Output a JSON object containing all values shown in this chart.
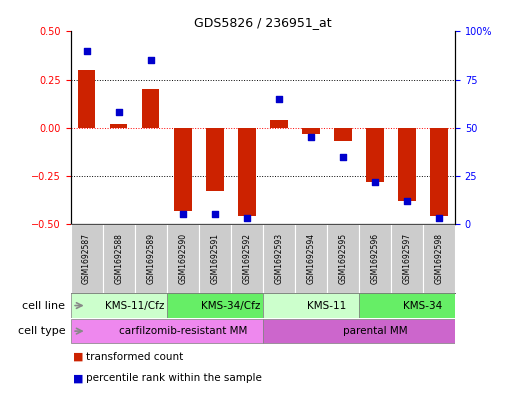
{
  "title": "GDS5826 / 236951_at",
  "samples": [
    "GSM1692587",
    "GSM1692588",
    "GSM1692589",
    "GSM1692590",
    "GSM1692591",
    "GSM1692592",
    "GSM1692593",
    "GSM1692594",
    "GSM1692595",
    "GSM1692596",
    "GSM1692597",
    "GSM1692598"
  ],
  "transformed_count": [
    0.3,
    0.02,
    0.2,
    -0.43,
    -0.33,
    -0.46,
    0.04,
    -0.03,
    -0.07,
    -0.28,
    -0.38,
    -0.46
  ],
  "percentile_rank": [
    90,
    58,
    85,
    5,
    5,
    3,
    65,
    45,
    35,
    22,
    12,
    3
  ],
  "cell_line_groups": [
    {
      "label": "KMS-11/Cfz",
      "start": 0,
      "end": 3,
      "color": "#ccffcc"
    },
    {
      "label": "KMS-34/Cfz",
      "start": 3,
      "end": 6,
      "color": "#66ee66"
    },
    {
      "label": "KMS-11",
      "start": 6,
      "end": 9,
      "color": "#ccffcc"
    },
    {
      "label": "KMS-34",
      "start": 9,
      "end": 12,
      "color": "#66ee66"
    }
  ],
  "cell_type_groups": [
    {
      "label": "carfilzomib-resistant MM",
      "start": 0,
      "end": 6,
      "color": "#ee88ee"
    },
    {
      "label": "parental MM",
      "start": 6,
      "end": 12,
      "color": "#cc66cc"
    }
  ],
  "bar_color": "#cc2200",
  "dot_color": "#0000cc",
  "ylim_left": [
    -0.5,
    0.5
  ],
  "ylim_right": [
    0,
    100
  ],
  "yticks_left": [
    -0.5,
    -0.25,
    0,
    0.25,
    0.5
  ],
  "yticks_right": [
    0,
    25,
    50,
    75,
    100
  ],
  "background_color": "#ffffff",
  "sample_box_color": "#cccccc",
  "legend_items": [
    {
      "label": "transformed count",
      "color": "#cc2200"
    },
    {
      "label": "percentile rank within the sample",
      "color": "#0000cc"
    }
  ]
}
